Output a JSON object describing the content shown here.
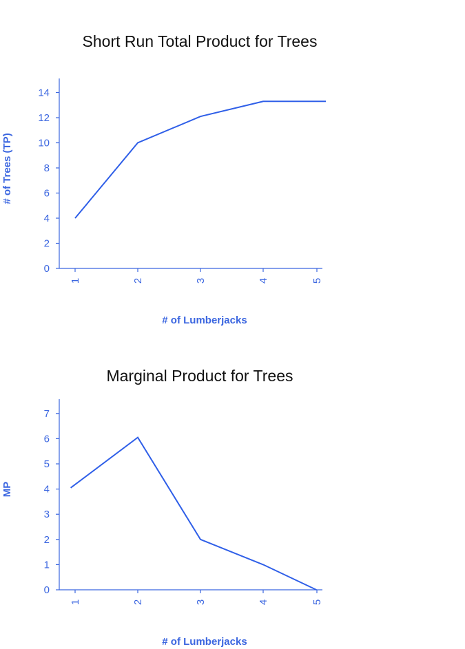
{
  "colors": {
    "series": "#2f5fe8",
    "axis": "#3b66e0",
    "title": "#111111"
  },
  "chart_data": [
    {
      "type": "line",
      "title": "Short Run Total Product for Trees",
      "xlabel": "# of Lumberjacks",
      "ylabel": "# of Trees (TP)",
      "x": [
        1,
        2,
        3,
        4,
        5
      ],
      "values": [
        4,
        10,
        12.1,
        13.3,
        13.3
      ],
      "xticks": [
        "1",
        "2",
        "3",
        "4",
        "5"
      ],
      "yticks": [
        0,
        2,
        4,
        6,
        8,
        10,
        12,
        14
      ],
      "ylim": [
        0,
        15
      ],
      "grid": false,
      "legend": "none"
    },
    {
      "type": "line",
      "title": "Marginal Product for Trees",
      "xlabel": "# of Lumberjacks",
      "ylabel": "MP",
      "x": [
        0.93,
        2,
        3,
        4,
        4.85
      ],
      "values": [
        4.05,
        6.05,
        2,
        1,
        0
      ],
      "xticks": [
        "1",
        "2",
        "3",
        "4",
        "5"
      ],
      "yticks": [
        0,
        1,
        2,
        3,
        4,
        5,
        6,
        7
      ],
      "ylim": [
        0,
        7.6
      ],
      "grid": false,
      "legend": "none"
    }
  ]
}
